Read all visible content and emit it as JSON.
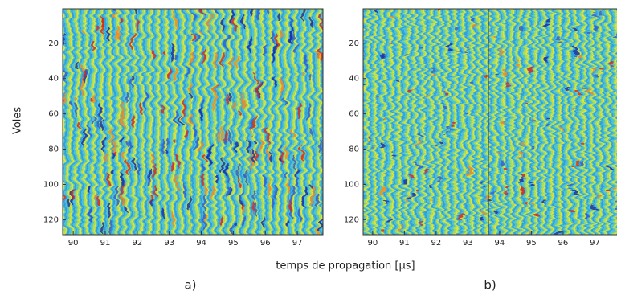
{
  "chart_data": [
    {
      "type": "heatmap",
      "label": "a)",
      "xlim": [
        89.67,
        97.8
      ],
      "ylim": [
        0.5,
        128.5
      ],
      "xticks": [
        90,
        91,
        92,
        93,
        94,
        95,
        96,
        97
      ],
      "yticks": [
        20,
        40,
        60,
        80,
        100,
        120
      ],
      "vline": 93.65
    },
    {
      "type": "heatmap",
      "label": "b)",
      "xlim": [
        89.7,
        97.9
      ],
      "ylim": [
        0.5,
        128.5
      ],
      "xticks": [
        90,
        91,
        92,
        93,
        94,
        95,
        96,
        97
      ],
      "yticks": [
        20,
        40,
        60,
        80,
        100,
        120
      ],
      "vline": 93.65
    }
  ],
  "xlabel": "temps de propagation [µs]",
  "ylabel": "Voies"
}
